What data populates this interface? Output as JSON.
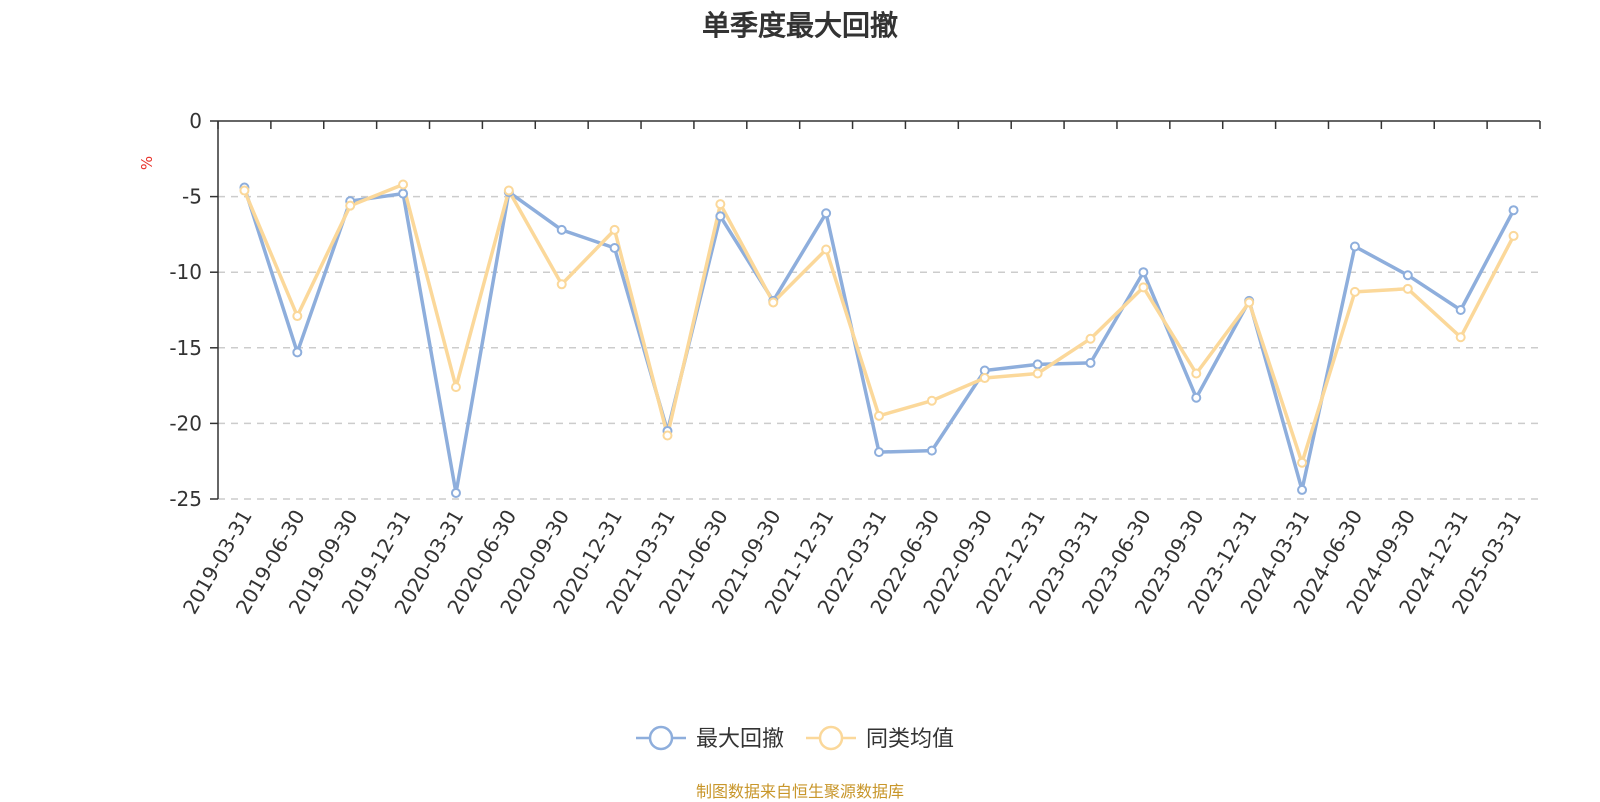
{
  "chart_data": {
    "type": "line",
    "title": "单季度最大回撤",
    "ylabel": "%",
    "ylim": [
      -25,
      0
    ],
    "yticks": [
      0,
      -5,
      -10,
      -15,
      -20,
      -25
    ],
    "grid": true,
    "legend_placement": "bottom",
    "categories": [
      "2019-03-31",
      "2019-06-30",
      "2019-09-30",
      "2019-12-31",
      "2020-03-31",
      "2020-06-30",
      "2020-09-30",
      "2020-12-31",
      "2021-03-31",
      "2021-06-30",
      "2021-09-30",
      "2021-12-31",
      "2022-03-31",
      "2022-06-30",
      "2022-09-30",
      "2022-12-31",
      "2023-03-31",
      "2023-06-30",
      "2023-09-30",
      "2023-12-31",
      "2024-03-31",
      "2024-06-30",
      "2024-09-30",
      "2024-12-31",
      "2025-03-31"
    ],
    "series": [
      {
        "name": "最大回撤",
        "color": "#8eaedc",
        "values": [
          -4.4,
          -15.3,
          -5.3,
          -4.8,
          -24.6,
          -4.7,
          -7.2,
          -8.4,
          -20.5,
          -6.3,
          -11.9,
          -6.1,
          -21.9,
          -21.8,
          -16.5,
          -16.1,
          -16.0,
          -10.0,
          -18.3,
          -11.9,
          -24.4,
          -8.3,
          -10.2,
          -12.5,
          -5.9
        ]
      },
      {
        "name": "同类均值",
        "color": "#fbd89a",
        "values": [
          -4.6,
          -12.9,
          -5.6,
          -4.2,
          -17.6,
          -4.6,
          -10.8,
          -7.2,
          -20.8,
          -5.5,
          -12.0,
          -8.5,
          -19.5,
          -18.5,
          -17.0,
          -16.7,
          -14.4,
          -11.0,
          -16.7,
          -12.0,
          -22.6,
          -11.3,
          -11.1,
          -14.3,
          -7.6
        ]
      }
    ]
  },
  "source_note": "制图数据来自恒生聚源数据库"
}
